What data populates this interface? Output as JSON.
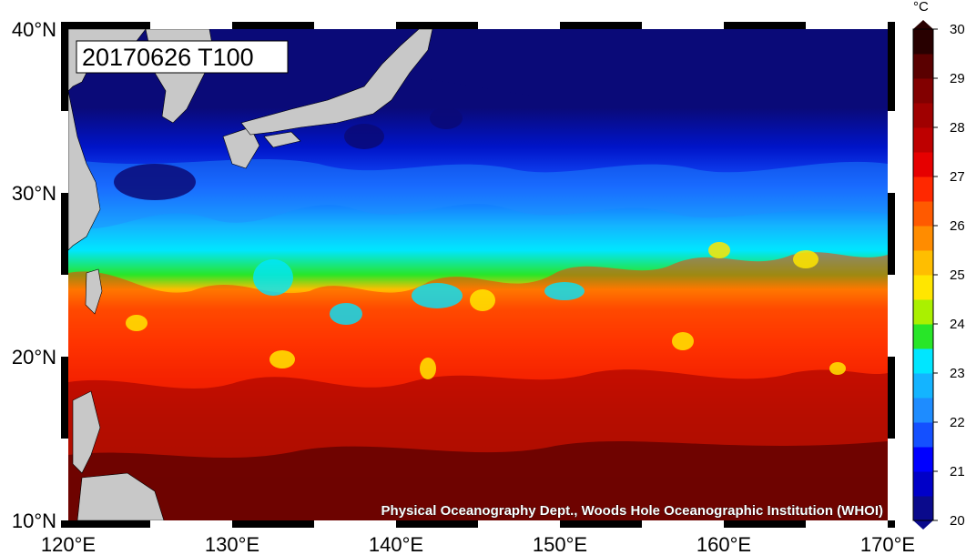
{
  "map": {
    "title": "20170626 T100",
    "credit": "Physical Oceanography Dept., Woods Hole Oceanographic Institution (WHOI)",
    "lon_range": [
      120,
      170
    ],
    "lat_range": [
      10,
      40
    ],
    "lon_ticks": [
      "120°E",
      "130°E",
      "140°E",
      "150°E",
      "160°E",
      "170°E"
    ],
    "lat_ticks": [
      "40°N",
      "30°N",
      "20°N",
      "10°N"
    ]
  },
  "colorbar": {
    "unit": "°C",
    "min": 20,
    "max": 30,
    "labels": [
      "30",
      "29",
      "28",
      "27",
      "26",
      "25",
      "24",
      "23",
      "22",
      "21",
      "20"
    ],
    "colors": [
      "#0a0a8c",
      "#0000c8",
      "#0000ff",
      "#1450ff",
      "#1e8cff",
      "#14b4ff",
      "#00e6ff",
      "#28e628",
      "#aaf000",
      "#ffe600",
      "#ffbe00",
      "#ff8c00",
      "#ff5a00",
      "#ff2800",
      "#e60000",
      "#be0000",
      "#a00000",
      "#820000",
      "#5a0000",
      "#280000"
    ]
  },
  "colors": {
    "land": "#c8c8c8",
    "cold_north": "#0a0a78",
    "deep_south": "#5a0000"
  }
}
